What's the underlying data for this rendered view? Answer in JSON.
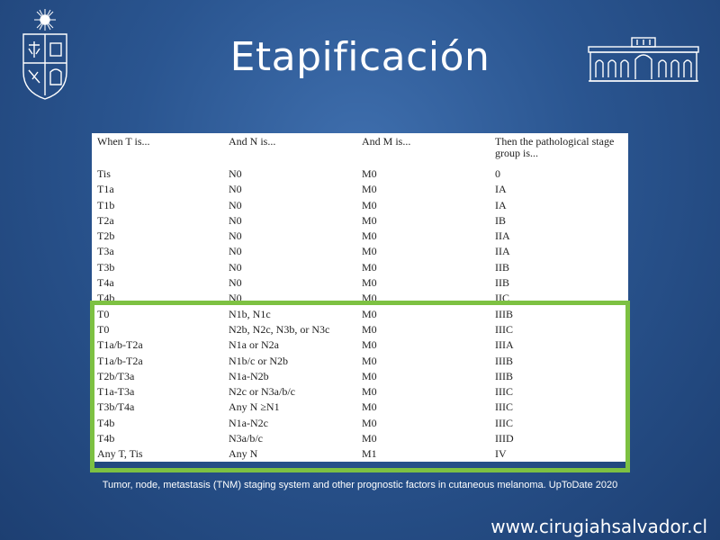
{
  "slide": {
    "title": "Etapificación",
    "caption": "Tumor, node, metastasis (TNM) staging system and other prognostic factors in cutaneous melanoma.  UpToDate 2020",
    "website": "www.cirugiahsalvador.cl"
  },
  "table": {
    "headers": [
      "When T is...",
      "And N is...",
      "And M is...",
      "Then the pathological stage group is..."
    ],
    "rows": [
      [
        "Tis",
        "N0",
        "M0",
        "0"
      ],
      [
        "T1a",
        "N0",
        "M0",
        "IA"
      ],
      [
        "T1b",
        "N0",
        "M0",
        "IA"
      ],
      [
        "T2a",
        "N0",
        "M0",
        "IB"
      ],
      [
        "T2b",
        "N0",
        "M0",
        "IIA"
      ],
      [
        "T3a",
        "N0",
        "M0",
        "IIA"
      ],
      [
        "T3b",
        "N0",
        "M0",
        "IIB"
      ],
      [
        "T4a",
        "N0",
        "M0",
        "IIB"
      ],
      [
        "T4b",
        "N0",
        "M0",
        "IIC"
      ],
      [
        "T0",
        "N1b, N1c",
        "M0",
        "IIIB"
      ],
      [
        "T0",
        "N2b, N2c, N3b, or N3c",
        "M0",
        "IIIC"
      ],
      [
        "T1a/b-T2a",
        "N1a or N2a",
        "M0",
        "IIIA"
      ],
      [
        "T1a/b-T2a",
        "N1b/c or N2b",
        "M0",
        "IIIB"
      ],
      [
        "T2b/T3a",
        "N1a-N2b",
        "M0",
        "IIIB"
      ],
      [
        "T1a-T3a",
        "N2c or N3a/b/c",
        "M0",
        "IIIC"
      ],
      [
        "T3b/T4a",
        "Any N ≥N1",
        "M0",
        "IIIC"
      ],
      [
        "T4b",
        "N1a-N2c",
        "M0",
        "IIIC"
      ],
      [
        "T4b",
        "N3a/b/c",
        "M0",
        "IIID"
      ],
      [
        "Any T, Tis",
        "Any N",
        "M1",
        "IV"
      ]
    ]
  },
  "colors": {
    "highlight": "#7dc142",
    "background": "#2a5590"
  },
  "icons": {
    "left_logo": "university-crest-icon",
    "right_logo": "hospital-building-icon"
  }
}
